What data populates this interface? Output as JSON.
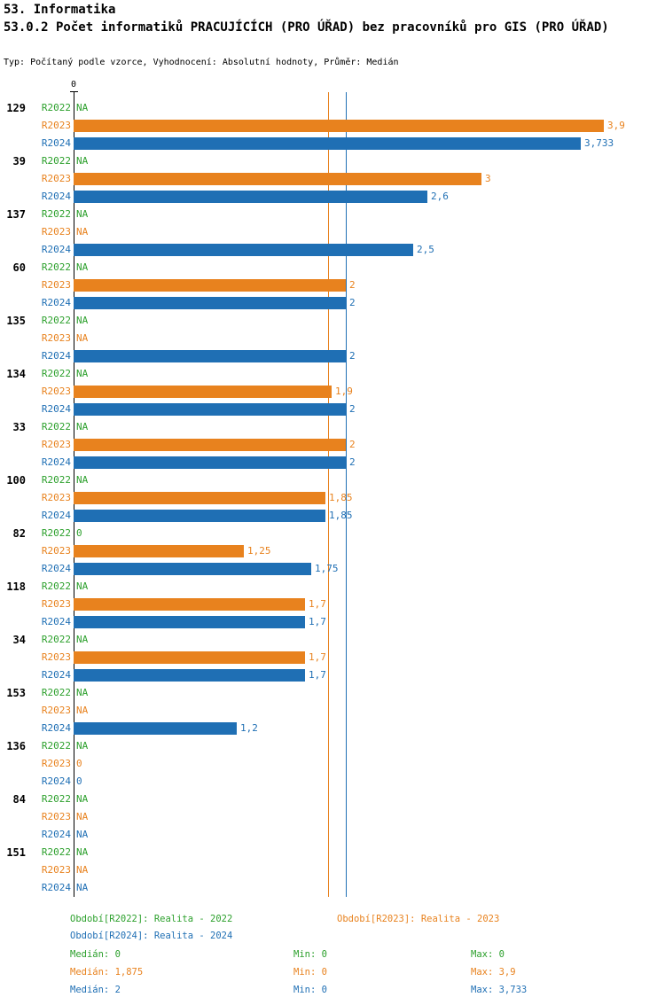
{
  "header": {
    "title_line1": "53. Informatika",
    "title_line2": "53.0.2 Počet informatiků PRACUJÍCÍCH (PRO ÚŘAD) bez pracovníků pro GIS (PRO ÚŘAD)",
    "subtitle": "Typ: Počítaný podle vzorce, Vyhodnocení: Absolutní hodnoty, Průměr: Medián"
  },
  "colors": {
    "series": {
      "R2022": "#2CA02C",
      "R2023": "#E8821E",
      "R2024": "#1F6FB4"
    },
    "axis": "#000000"
  },
  "chart_data": {
    "type": "bar",
    "orientation": "horizontal",
    "axis_tick_label": "0",
    "x_min": 0,
    "x_max": 3.9,
    "series_labels": [
      "R2022",
      "R2023",
      "R2024"
    ],
    "reference_lines": [
      {
        "series": "R2023",
        "value": 1.875,
        "meaning": "Medián R2023"
      },
      {
        "series": "R2024",
        "value": 2,
        "meaning": "Medián R2024"
      }
    ],
    "groups": [
      {
        "id": "129",
        "rows": [
          {
            "series": "R2022",
            "display": "NA",
            "value": null
          },
          {
            "series": "R2023",
            "display": "3,9",
            "value": 3.9
          },
          {
            "series": "R2024",
            "display": "3,733",
            "value": 3.733
          }
        ]
      },
      {
        "id": "39",
        "rows": [
          {
            "series": "R2022",
            "display": "NA",
            "value": null
          },
          {
            "series": "R2023",
            "display": "3",
            "value": 3
          },
          {
            "series": "R2024",
            "display": "2,6",
            "value": 2.6
          }
        ]
      },
      {
        "id": "137",
        "rows": [
          {
            "series": "R2022",
            "display": "NA",
            "value": null
          },
          {
            "series": "R2023",
            "display": "NA",
            "value": null
          },
          {
            "series": "R2024",
            "display": "2,5",
            "value": 2.5
          }
        ]
      },
      {
        "id": "60",
        "rows": [
          {
            "series": "R2022",
            "display": "NA",
            "value": null
          },
          {
            "series": "R2023",
            "display": "2",
            "value": 2
          },
          {
            "series": "R2024",
            "display": "2",
            "value": 2
          }
        ]
      },
      {
        "id": "135",
        "rows": [
          {
            "series": "R2022",
            "display": "NA",
            "value": null
          },
          {
            "series": "R2023",
            "display": "NA",
            "value": null
          },
          {
            "series": "R2024",
            "display": "2",
            "value": 2
          }
        ]
      },
      {
        "id": "134",
        "rows": [
          {
            "series": "R2022",
            "display": "NA",
            "value": null
          },
          {
            "series": "R2023",
            "display": "1,9",
            "value": 1.9
          },
          {
            "series": "R2024",
            "display": "2",
            "value": 2
          }
        ]
      },
      {
        "id": "33",
        "rows": [
          {
            "series": "R2022",
            "display": "NA",
            "value": null
          },
          {
            "series": "R2023",
            "display": "2",
            "value": 2
          },
          {
            "series": "R2024",
            "display": "2",
            "value": 2
          }
        ]
      },
      {
        "id": "100",
        "rows": [
          {
            "series": "R2022",
            "display": "NA",
            "value": null
          },
          {
            "series": "R2023",
            "display": "1,85",
            "value": 1.85
          },
          {
            "series": "R2024",
            "display": "1,85",
            "value": 1.85
          }
        ]
      },
      {
        "id": "82",
        "rows": [
          {
            "series": "R2022",
            "display": "0",
            "value": 0
          },
          {
            "series": "R2023",
            "display": "1,25",
            "value": 1.25
          },
          {
            "series": "R2024",
            "display": "1,75",
            "value": 1.75
          }
        ]
      },
      {
        "id": "118",
        "rows": [
          {
            "series": "R2022",
            "display": "NA",
            "value": null
          },
          {
            "series": "R2023",
            "display": "1,7",
            "value": 1.7
          },
          {
            "series": "R2024",
            "display": "1,7",
            "value": 1.7
          }
        ]
      },
      {
        "id": "34",
        "rows": [
          {
            "series": "R2022",
            "display": "NA",
            "value": null
          },
          {
            "series": "R2023",
            "display": "1,7",
            "value": 1.7
          },
          {
            "series": "R2024",
            "display": "1,7",
            "value": 1.7
          }
        ]
      },
      {
        "id": "153",
        "rows": [
          {
            "series": "R2022",
            "display": "NA",
            "value": null
          },
          {
            "series": "R2023",
            "display": "NA",
            "value": null
          },
          {
            "series": "R2024",
            "display": "1,2",
            "value": 1.2
          }
        ]
      },
      {
        "id": "136",
        "rows": [
          {
            "series": "R2022",
            "display": "NA",
            "value": null
          },
          {
            "series": "R2023",
            "display": "0",
            "value": 0
          },
          {
            "series": "R2024",
            "display": "0",
            "value": 0
          }
        ]
      },
      {
        "id": "84",
        "rows": [
          {
            "series": "R2022",
            "display": "NA",
            "value": null
          },
          {
            "series": "R2023",
            "display": "NA",
            "value": null
          },
          {
            "series": "R2024",
            "display": "NA",
            "value": null
          }
        ]
      },
      {
        "id": "151",
        "rows": [
          {
            "series": "R2022",
            "display": "NA",
            "value": null
          },
          {
            "series": "R2023",
            "display": "NA",
            "value": null
          },
          {
            "series": "R2024",
            "display": "NA",
            "value": null
          }
        ]
      }
    ]
  },
  "legend": {
    "items": [
      {
        "series": "R2022",
        "label": "Období[R2022]: Realita - 2022"
      },
      {
        "series": "R2023",
        "label": "Období[R2023]: Realita - 2023"
      },
      {
        "series": "R2024",
        "label": "Období[R2024]: Realita - 2024"
      }
    ],
    "stats": [
      {
        "series": "R2022",
        "median": "Medián: 0",
        "min": "Min: 0",
        "max": "Max: 0"
      },
      {
        "series": "R2023",
        "median": "Medián: 1,875",
        "min": "Min: 0",
        "max": "Max: 3,9"
      },
      {
        "series": "R2024",
        "median": "Medián: 2",
        "min": "Min: 0",
        "max": "Max: 3,733"
      }
    ]
  }
}
